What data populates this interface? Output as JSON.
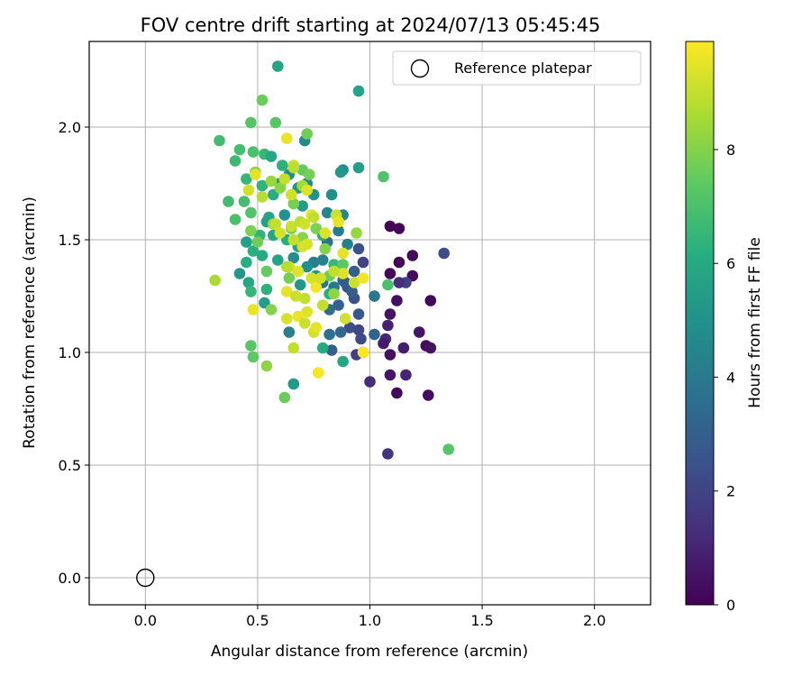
{
  "chart_data": {
    "type": "scatter",
    "title": "FOV centre drift starting at 2024/07/13 05:45:45",
    "xlabel": "Angular distance from reference (arcmin)",
    "ylabel": "Rotation from reference (arcmin)",
    "xlim": [
      -0.25,
      2.25
    ],
    "ylim": [
      -0.12,
      2.38
    ],
    "xticks": [
      0.0,
      0.5,
      1.0,
      1.5,
      2.0
    ],
    "yticks": [
      0.0,
      0.5,
      1.0,
      1.5,
      2.0
    ],
    "xtick_labels": [
      "0.0",
      "0.5",
      "1.0",
      "1.5",
      "2.0"
    ],
    "ytick_labels": [
      "0.0",
      "0.5",
      "1.0",
      "1.5",
      "2.0"
    ],
    "grid": true,
    "colormap": "viridis",
    "colorbar": {
      "label": "Hours from first FF file",
      "range": [
        0,
        9.9
      ],
      "ticks": [
        0,
        2,
        4,
        6,
        8
      ],
      "tick_labels": [
        "0",
        "2",
        "4",
        "6",
        "8"
      ]
    },
    "legend": {
      "position": "top-right",
      "entries": [
        {
          "label": "Reference platepar",
          "marker": "open-circle"
        }
      ]
    },
    "reference_point": {
      "x": 0.0,
      "y": 0.0
    },
    "series": [
      {
        "points": [
          [
            1.09,
            1.56,
            0.1
          ],
          [
            1.13,
            1.55,
            0.2
          ],
          [
            1.19,
            1.43,
            0.3
          ],
          [
            1.13,
            1.4,
            0.1
          ],
          [
            1.09,
            1.35,
            0.2
          ],
          [
            1.19,
            1.34,
            0.3
          ],
          [
            1.12,
            1.23,
            0.4
          ],
          [
            1.27,
            1.23,
            0.2
          ],
          [
            1.09,
            1.17,
            0.5
          ],
          [
            1.08,
            1.12,
            0.9
          ],
          [
            1.22,
            1.09,
            0.6
          ],
          [
            1.07,
            1.06,
            1.1
          ],
          [
            1.06,
            1.04,
            0.7
          ],
          [
            1.15,
            1.02,
            0.8
          ],
          [
            1.25,
            1.03,
            0.3
          ],
          [
            1.27,
            1.02,
            0.5
          ],
          [
            1.09,
            0.99,
            0.4
          ],
          [
            1.09,
            0.9,
            0.6
          ],
          [
            1.16,
            0.9,
            1.0
          ],
          [
            1.12,
            0.82,
            0.2
          ],
          [
            1.26,
            0.81,
            0.3
          ],
          [
            1.0,
            0.87,
            1.2
          ],
          [
            1.08,
            0.55,
            1.5
          ],
          [
            1.33,
            1.44,
            2.3
          ],
          [
            1.16,
            1.31,
            1.9
          ],
          [
            1.13,
            1.31,
            1.3
          ],
          [
            0.95,
            1.46,
            2.5
          ],
          [
            0.97,
            1.4,
            2.0
          ],
          [
            0.93,
            1.36,
            3.0
          ],
          [
            0.9,
            1.29,
            2.6
          ],
          [
            0.93,
            1.24,
            2.4
          ],
          [
            0.95,
            1.17,
            2.7
          ],
          [
            0.95,
            1.1,
            2.1
          ],
          [
            0.91,
            1.11,
            2.3
          ],
          [
            0.96,
            1.06,
            2.2
          ],
          [
            0.97,
            1.0,
            2.6
          ],
          [
            0.94,
            0.99,
            1.8
          ],
          [
            1.02,
            1.08,
            3.2
          ],
          [
            1.02,
            1.25,
            3.9
          ],
          [
            0.88,
            1.32,
            3.4
          ],
          [
            0.86,
            1.21,
            3.1
          ],
          [
            0.87,
            1.09,
            3.3
          ],
          [
            0.82,
            1.08,
            3.6
          ],
          [
            0.83,
            1.01,
            3.0
          ],
          [
            0.89,
            1.31,
            2.8
          ],
          [
            0.92,
            1.27,
            2.9
          ],
          [
            0.82,
            1.19,
            3.5
          ],
          [
            0.84,
            1.29,
            4.0
          ],
          [
            0.79,
            1.31,
            3.8
          ],
          [
            0.75,
            1.4,
            4.2
          ],
          [
            0.81,
            1.49,
            3.7
          ],
          [
            0.86,
            1.54,
            4.1
          ],
          [
            0.9,
            1.48,
            4.3
          ],
          [
            0.81,
            1.62,
            4.5
          ],
          [
            0.88,
            1.61,
            4.6
          ],
          [
            0.79,
            1.41,
            4.4
          ],
          [
            0.71,
            1.94,
            4.6
          ],
          [
            0.88,
            1.81,
            4.8
          ],
          [
            0.87,
            1.8,
            5.2
          ],
          [
            0.95,
            1.82,
            5.5
          ],
          [
            0.83,
            1.7,
            4.9
          ],
          [
            0.75,
            1.7,
            5.0
          ],
          [
            0.72,
            1.75,
            4.7
          ],
          [
            0.64,
            1.79,
            4.9
          ],
          [
            0.6,
            1.75,
            5.1
          ],
          [
            0.68,
            1.73,
            5.3
          ],
          [
            0.7,
            1.65,
            5.4
          ],
          [
            0.62,
            1.61,
            5.0
          ],
          [
            0.55,
            1.6,
            5.8
          ],
          [
            0.54,
            1.58,
            5.6
          ],
          [
            0.59,
            1.41,
            5.7
          ],
          [
            0.66,
            1.42,
            4.8
          ],
          [
            0.69,
            1.3,
            5.2
          ],
          [
            0.72,
            1.38,
            4.9
          ],
          [
            0.76,
            1.34,
            5.1
          ],
          [
            0.68,
            1.47,
            5.5
          ],
          [
            0.64,
            1.09,
            4.3
          ],
          [
            0.66,
            0.86,
            5.3
          ],
          [
            0.88,
            0.96,
            5.9
          ],
          [
            0.79,
            1.02,
            6.0
          ],
          [
            0.53,
            1.22,
            5.4
          ],
          [
            0.46,
            1.31,
            5.8
          ],
          [
            0.42,
            1.35,
            5.2
          ],
          [
            0.45,
            1.49,
            5.6
          ],
          [
            0.48,
            1.45,
            6.2
          ],
          [
            0.52,
            1.43,
            6.0
          ],
          [
            0.59,
            2.27,
            5.8
          ],
          [
            0.95,
            2.16,
            5.7
          ],
          [
            0.53,
            1.88,
            6.6
          ],
          [
            0.56,
            1.87,
            5.9
          ],
          [
            0.61,
            1.83,
            6.3
          ],
          [
            0.57,
            1.7,
            6.1
          ],
          [
            0.52,
            1.74,
            6.4
          ],
          [
            0.45,
            1.77,
            6.5
          ],
          [
            0.57,
            1.52,
            5.9
          ],
          [
            0.63,
            1.5,
            6.2
          ],
          [
            0.51,
            1.52,
            6.4
          ],
          [
            0.45,
            1.4,
            6.1
          ],
          [
            0.54,
            1.28,
            6.3
          ],
          [
            0.47,
            1.27,
            6.5
          ],
          [
            0.79,
            1.52,
            6.0
          ],
          [
            0.84,
            1.39,
            6.6
          ],
          [
            0.82,
            1.26,
            6.2
          ],
          [
            0.33,
            1.94,
            6.8
          ],
          [
            0.42,
            1.9,
            6.9
          ],
          [
            0.48,
            1.89,
            7.0
          ],
          [
            0.4,
            1.85,
            6.7
          ],
          [
            0.37,
            1.67,
            6.8
          ],
          [
            0.4,
            1.59,
            7.0
          ],
          [
            0.44,
            1.67,
            6.9
          ],
          [
            0.47,
            1.62,
            7.1
          ],
          [
            0.47,
            2.02,
            7.2
          ],
          [
            0.52,
            2.12,
            7.6
          ],
          [
            0.58,
            2.02,
            7.3
          ],
          [
            0.72,
            1.97,
            7.7
          ],
          [
            0.7,
            1.81,
            7.5
          ],
          [
            0.73,
            1.79,
            7.8
          ],
          [
            1.06,
            1.78,
            7.1
          ],
          [
            1.08,
            1.3,
            7.0
          ],
          [
            1.35,
            0.57,
            7.2
          ],
          [
            0.62,
            0.8,
            7.6
          ],
          [
            0.48,
            0.98,
            7.4
          ],
          [
            0.47,
            1.03,
            7.3
          ],
          [
            0.56,
            1.19,
            8.0
          ],
          [
            0.54,
            0.94,
            8.2
          ],
          [
            0.31,
            1.32,
            8.6
          ],
          [
            0.47,
            1.54,
            7.9
          ],
          [
            0.54,
            1.36,
            7.5
          ],
          [
            0.64,
            1.33,
            7.8
          ],
          [
            0.65,
            1.55,
            7.7
          ],
          [
            0.7,
            1.51,
            8.1
          ],
          [
            0.76,
            1.55,
            7.9
          ],
          [
            0.8,
            1.46,
            8.0
          ],
          [
            0.82,
            1.34,
            7.6
          ],
          [
            0.84,
            1.26,
            8.2
          ],
          [
            0.88,
            1.39,
            7.4
          ],
          [
            0.94,
            1.53,
            8.3
          ],
          [
            0.66,
            1.66,
            7.8
          ],
          [
            0.6,
            1.73,
            8.1
          ],
          [
            0.57,
            1.57,
            8.4
          ],
          [
            0.5,
            1.49,
            7.7
          ],
          [
            0.49,
            1.8,
            8.0
          ],
          [
            0.56,
            1.76,
            8.3
          ],
          [
            0.7,
            1.74,
            8.5
          ],
          [
            0.63,
            1.95,
            9.6
          ],
          [
            0.72,
            1.72,
            9.4
          ],
          [
            0.66,
            1.83,
            9.1
          ],
          [
            0.66,
            1.82,
            8.9
          ],
          [
            0.62,
            1.77,
            9.0
          ],
          [
            0.49,
            1.79,
            9.5
          ],
          [
            0.52,
            1.69,
            8.8
          ],
          [
            0.46,
            1.72,
            9.2
          ],
          [
            0.58,
            1.57,
            9.0
          ],
          [
            0.6,
            1.53,
            9.3
          ],
          [
            0.65,
            1.56,
            9.1
          ],
          [
            0.69,
            1.58,
            8.9
          ],
          [
            0.71,
            1.57,
            9.2
          ],
          [
            0.74,
            1.61,
            9.5
          ],
          [
            0.75,
            1.6,
            9.0
          ],
          [
            0.8,
            1.53,
            9.4
          ],
          [
            0.85,
            1.61,
            9.1
          ],
          [
            0.86,
            1.58,
            9.6
          ],
          [
            0.72,
            1.48,
            9.3
          ],
          [
            0.66,
            1.5,
            9.0
          ],
          [
            0.64,
            1.38,
            9.2
          ],
          [
            0.68,
            1.36,
            9.4
          ],
          [
            0.63,
            1.27,
            9.5
          ],
          [
            0.67,
            1.25,
            9.1
          ],
          [
            0.71,
            1.24,
            9.0
          ],
          [
            0.74,
            1.33,
            9.3
          ],
          [
            0.76,
            1.29,
            9.7
          ],
          [
            0.78,
            1.33,
            9.2
          ],
          [
            0.79,
            1.21,
            9.0
          ],
          [
            0.72,
            1.18,
            9.4
          ],
          [
            0.68,
            1.16,
            9.6
          ],
          [
            0.63,
            1.15,
            9.3
          ],
          [
            0.71,
            1.13,
            9.1
          ],
          [
            0.75,
            1.09,
            9.2
          ],
          [
            0.76,
            1.11,
            9.5
          ],
          [
            0.66,
            1.02,
            9.0
          ],
          [
            0.77,
            0.91,
            9.8
          ],
          [
            0.89,
            1.15,
            9.2
          ],
          [
            0.88,
            1.35,
            9.4
          ],
          [
            0.93,
            1.31,
            9.1
          ],
          [
            0.97,
            1.33,
            9.7
          ],
          [
            0.97,
            1.0,
            9.9
          ],
          [
            0.48,
            1.19,
            9.6
          ],
          [
            0.84,
            1.36,
            9.0
          ],
          [
            0.63,
            1.38,
            8.8
          ],
          [
            0.7,
            1.47,
            9.3
          ],
          [
            0.88,
            1.44,
            9.5
          ],
          [
            0.65,
            1.7,
            9.2
          ]
        ]
      }
    ]
  }
}
